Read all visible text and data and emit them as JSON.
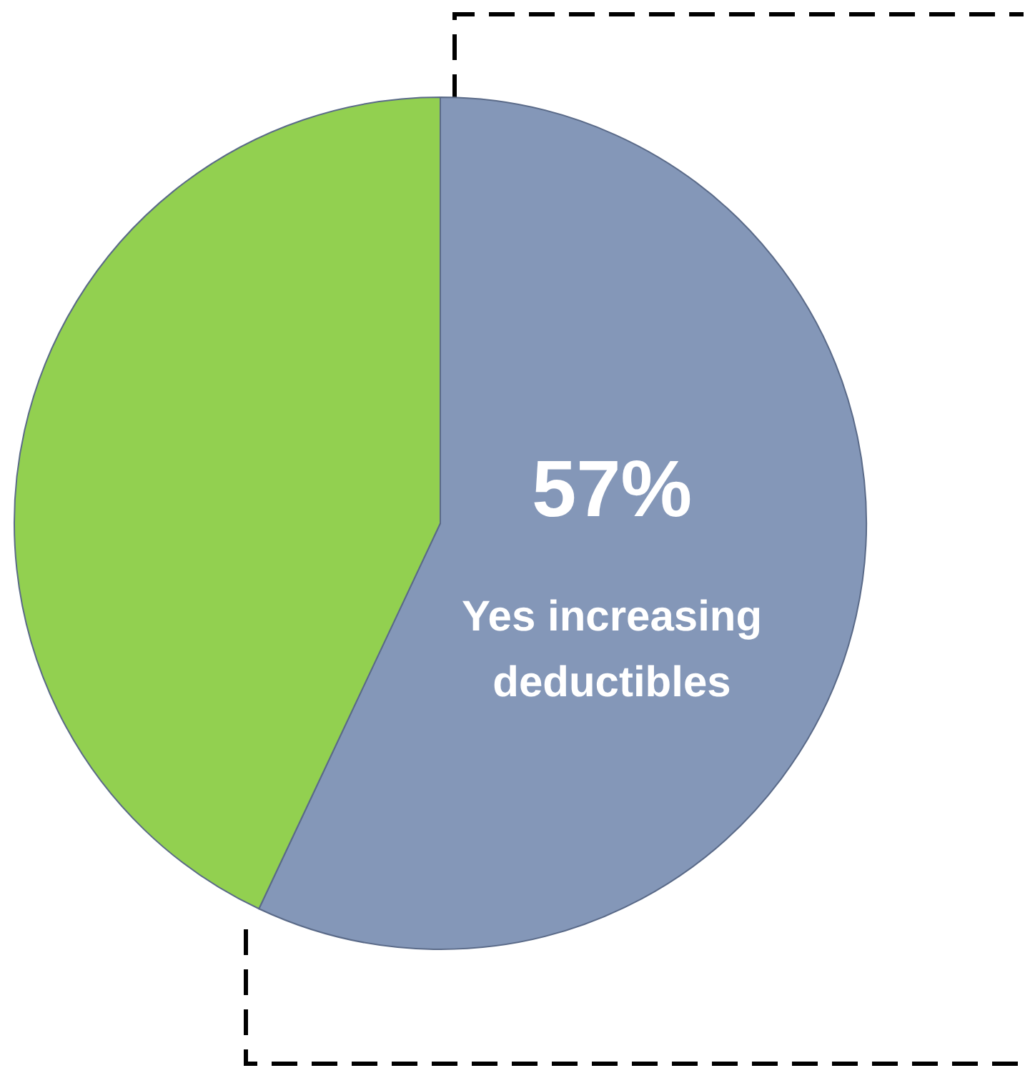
{
  "chart_data": {
    "type": "pie",
    "categories": [
      "Yes increasing deductibles",
      null
    ],
    "values": [
      57,
      43
    ],
    "colors": [
      "#8497b8",
      "#92d050"
    ],
    "value_labels": [
      "57%",
      null
    ]
  }
}
